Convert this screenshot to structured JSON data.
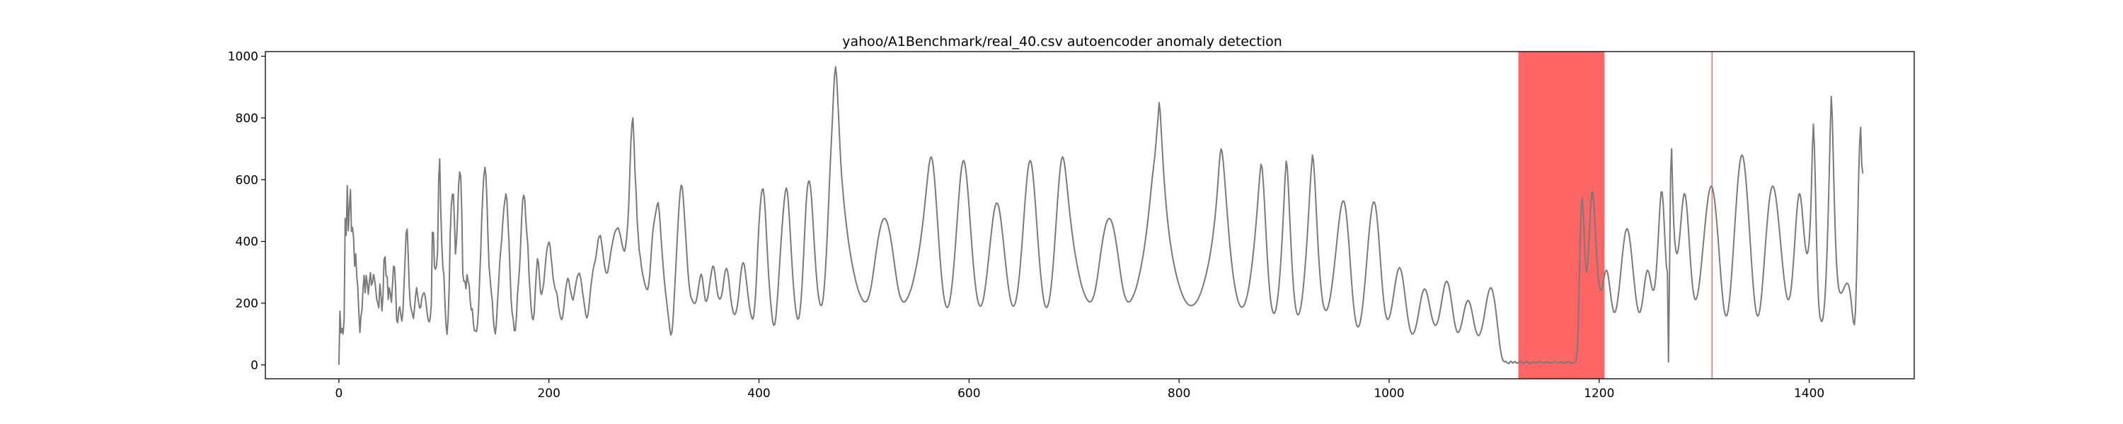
{
  "chart_data": {
    "type": "line",
    "title": "yahoo/A1Benchmark/real_40.csv autoencoder anomaly detection",
    "xlabel": "",
    "ylabel": "",
    "xlim": [
      -70,
      1500
    ],
    "ylim": [
      -45,
      1015
    ],
    "x_ticks": [
      0,
      200,
      400,
      600,
      800,
      1000,
      1200,
      1400
    ],
    "y_ticks": [
      0,
      200,
      400,
      600,
      800,
      1000
    ],
    "grid": false,
    "legend": "none",
    "line_color": "#7a7a7a",
    "anomaly_color": "#ff0000",
    "anomaly_spans": [
      [
        1123,
        1205
      ],
      [
        1307,
        1308
      ]
    ],
    "x_start": 0,
    "x_step": 1,
    "values": [
      0,
      174,
      103,
      118,
      100,
      150,
      474,
      420,
      581,
      435,
      510,
      568,
      432,
      445,
      410,
      320,
      360,
      289,
      251,
      170,
      105,
      158,
      178,
      248,
      290,
      234,
      289,
      265,
      229,
      268,
      299,
      258,
      267,
      293,
      277,
      248,
      212,
      200,
      185,
      262,
      227,
      175,
      224,
      342,
      350,
      288,
      285,
      212,
      250,
      231,
      203,
      258,
      320,
      316,
      251,
      145,
      137,
      177,
      188,
      162,
      142,
      175,
      257,
      339,
      426,
      440,
      358,
      251,
      195,
      178,
      166,
      150,
      183,
      224,
      250,
      224,
      200,
      184,
      188,
      217,
      228,
      234,
      226,
      200,
      169,
      146,
      139,
      151,
      197,
      430,
      428,
      318,
      310,
      321,
      370,
      600,
      667,
      500,
      391,
      318,
      290,
      200,
      131,
      99,
      150,
      248,
      425,
      514,
      552,
      553,
      467,
      359,
      400,
      477,
      582,
      625,
      611,
      497,
      295,
      271,
      271,
      247,
      292,
      271,
      259,
      210,
      178,
      182,
      138,
      111,
      110,
      108,
      131,
      183,
      278,
      361,
      470,
      552,
      611,
      640,
      615,
      528,
      411,
      318,
      280,
      238,
      211,
      150,
      117,
      100,
      137,
      200,
      258,
      323,
      368,
      404,
      460,
      503,
      532,
      554,
      534,
      462,
      394,
      298,
      211,
      168,
      149,
      111,
      111,
      153,
      225,
      267,
      313,
      386,
      473,
      533,
      550,
      536,
      470,
      423,
      383,
      294,
      238,
      187,
      153,
      146,
      168,
      240,
      298,
      344,
      332,
      283,
      236,
      228,
      244,
      263,
      302,
      340,
      372,
      387,
      398,
      389,
      350,
      319,
      280,
      262,
      244,
      238,
      223,
      192,
      171,
      155,
      146,
      154,
      178,
      214,
      247,
      268,
      281,
      273,
      249,
      234,
      216,
      210,
      228,
      249,
      270,
      285,
      294,
      297,
      285,
      264,
      235,
      213,
      189,
      165,
      152,
      160,
      186,
      221,
      257,
      282,
      307,
      324,
      336,
      355,
      382,
      408,
      417,
      419,
      400,
      375,
      345,
      320,
      302,
      297,
      301,
      321,
      343,
      367,
      386,
      403,
      420,
      432,
      438,
      442,
      444,
      432,
      420,
      402,
      385,
      372,
      368,
      384,
      412,
      455,
      520,
      620,
      720,
      780,
      800,
      720,
      620,
      560,
      470,
      420,
      370,
      350,
      320,
      298,
      282,
      266,
      254,
      245,
      244,
      260,
      292,
      342,
      394,
      434,
      460,
      480,
      499,
      518,
      526,
      499,
      453,
      400,
      353,
      309,
      270,
      236,
      208,
      178,
      149,
      118,
      97,
      104,
      138,
      198,
      262,
      329,
      397,
      462,
      520,
      561,
      582,
      576,
      536,
      484,
      430,
      376,
      320,
      276,
      244,
      222,
      213,
      205,
      200,
      199,
      205,
      220,
      242,
      264,
      285,
      294,
      283,
      256,
      229,
      208,
      206,
      216,
      235,
      261,
      285,
      306,
      320,
      318,
      297,
      269,
      243,
      224,
      215,
      213,
      220,
      235,
      260,
      287,
      306,
      313,
      305,
      284,
      253,
      220,
      194,
      177,
      166,
      163,
      169,
      184,
      206,
      236,
      272,
      303,
      325,
      331,
      324,
      301,
      273,
      242,
      213,
      187,
      168,
      154,
      148,
      160,
      192,
      240,
      310,
      389,
      456,
      507,
      546,
      568,
      570,
      544,
      495,
      430,
      363,
      302,
      250,
      207,
      171,
      142,
      128,
      131,
      152,
      190,
      236,
      290,
      345,
      398,
      447,
      491,
      530,
      560,
      573,
      562,
      525,
      472,
      412,
      352,
      296,
      248,
      208,
      179,
      157,
      148,
      152,
      172,
      208,
      258,
      321,
      391,
      464,
      528,
      571,
      593,
      596,
      578,
      541,
      488,
      430,
      372,
      319,
      275,
      240,
      215,
      198,
      192,
      195,
      213,
      246,
      291,
      350,
      420,
      500,
      580,
      660,
      730,
      800,
      880,
      940,
      966,
      930,
      860,
      790,
      715,
      650,
      600,
      560,
      522,
      490,
      460,
      432,
      406,
      382,
      360,
      340,
      322,
      305,
      289,
      274,
      260,
      248,
      238,
      229,
      221,
      214,
      209,
      205,
      204,
      205,
      209,
      216,
      226,
      240,
      258,
      279,
      302,
      327,
      352,
      376,
      398,
      419,
      436,
      451,
      462,
      470,
      474,
      474,
      470,
      462,
      451,
      436,
      419,
      398,
      376,
      352,
      327,
      302,
      279,
      258,
      240,
      226,
      216,
      209,
      205,
      204,
      205,
      209,
      214,
      221,
      229,
      238,
      248,
      260,
      274,
      289,
      305,
      322,
      340,
      360,
      382,
      406,
      432,
      460,
      490,
      522,
      556,
      590,
      622,
      650,
      668,
      674,
      665,
      642,
      608,
      565,
      516,
      465,
      414,
      365,
      320,
      281,
      248,
      222,
      203,
      191,
      186,
      188,
      197,
      213,
      236,
      265,
      300,
      340,
      385,
      433,
      482,
      530,
      574,
      612,
      641,
      658,
      662,
      652,
      630,
      598,
      558,
      514,
      466,
      418,
      372,
      330,
      292,
      260,
      234,
      214,
      200,
      192,
      190,
      194,
      204,
      219,
      240,
      265,
      293,
      324,
      356,
      389,
      421,
      451,
      478,
      500,
      516,
      524,
      524,
      516,
      500,
      478,
      451,
      421,
      389,
      356,
      324,
      293,
      265,
      240,
      219,
      204,
      194,
      190,
      192,
      200,
      214,
      234,
      260,
      292,
      330,
      372,
      418,
      466,
      514,
      558,
      598,
      630,
      652,
      662,
      658,
      641,
      612,
      574,
      530,
      482,
      433,
      385,
      340,
      300,
      265,
      236,
      213,
      197,
      188,
      186,
      191,
      203,
      222,
      248,
      281,
      320,
      365,
      414,
      465,
      516,
      565,
      608,
      642,
      665,
      674,
      668,
      650,
      622,
      590,
      556,
      522,
      490,
      460,
      432,
      406,
      382,
      360,
      340,
      322,
      305,
      289,
      274,
      260,
      248,
      238,
      229,
      221,
      214,
      209,
      205,
      204,
      205,
      209,
      216,
      226,
      240,
      258,
      279,
      302,
      327,
      352,
      376,
      398,
      419,
      436,
      451,
      462,
      470,
      474,
      474,
      470,
      462,
      451,
      436,
      419,
      398,
      376,
      352,
      327,
      302,
      279,
      258,
      240,
      226,
      216,
      209,
      205,
      204,
      205,
      209,
      214,
      221,
      229,
      238,
      248,
      260,
      274,
      289,
      305,
      322,
      340,
      360,
      382,
      406,
      432,
      460,
      490,
      522,
      556,
      590,
      622,
      650,
      680,
      720,
      760,
      800,
      850,
      820,
      760,
      700,
      640,
      590,
      545,
      505,
      470,
      440,
      412,
      388,
      366,
      346,
      328,
      312,
      297,
      283,
      270,
      258,
      247,
      237,
      228,
      220,
      213,
      207,
      202,
      198,
      195,
      193,
      192,
      192,
      193,
      195,
      198,
      202,
      207,
      213,
      220,
      228,
      237,
      247,
      258,
      270,
      283,
      297,
      312,
      328,
      346,
      366,
      388,
      412,
      440,
      470,
      505,
      545,
      590,
      640,
      680,
      700,
      690,
      660,
      620,
      575,
      530,
      485,
      442,
      402,
      366,
      333,
      304,
      279,
      257,
      238,
      222,
      209,
      199,
      192,
      188,
      187,
      189,
      194,
      202,
      213,
      227,
      244,
      264,
      287,
      313,
      342,
      374,
      409,
      447,
      488,
      531,
      577,
      620,
      650,
      640,
      600,
      545,
      480,
      412,
      350,
      295,
      250,
      215,
      190,
      174,
      167,
      168,
      177,
      194,
      219,
      252,
      293,
      342,
      399,
      464,
      537,
      610,
      660,
      640,
      580,
      505,
      430,
      360,
      300,
      250,
      212,
      185,
      169,
      162,
      164,
      173,
      189,
      212,
      241,
      276,
      317,
      363,
      414,
      470,
      530,
      590,
      640,
      680,
      660,
      610,
      545,
      475,
      408,
      348,
      297,
      256,
      224,
      201,
      186,
      178,
      176,
      180,
      189,
      203,
      221,
      243,
      268,
      296,
      326,
      358,
      391,
      424,
      455,
      483,
      506,
      523,
      531,
      530,
      518,
      496,
      464,
      424,
      378,
      329,
      281,
      237,
      199,
      168,
      145,
      130,
      123,
      124,
      132,
      147,
      169,
      197,
      230,
      267,
      307,
      349,
      391,
      431,
      466,
      495,
      516,
      527,
      527,
      515,
      492,
      459,
      418,
      372,
      324,
      278,
      237,
      203,
      177,
      159,
      149,
      147,
      152,
      163,
      179,
      199,
      221,
      244,
      266,
      286,
      302,
      312,
      315,
      310,
      298,
      279,
      255,
      228,
      200,
      173,
      149,
      129,
      114,
      104,
      100,
      101,
      107,
      117,
      131,
      148,
      167,
      187,
      206,
      223,
      236,
      244,
      246,
      242,
      232,
      218,
      201,
      183,
      166,
      151,
      139,
      131,
      128,
      130,
      137,
      149,
      165,
      184,
      205,
      226,
      245,
      260,
      269,
      271,
      266,
      254,
      236,
      214,
      190,
      166,
      144,
      126,
      113,
      106,
      105,
      110,
      120,
      134,
      150,
      167,
      183,
      196,
      205,
      209,
      207,
      199,
      186,
      170,
      152,
      134,
      118,
      106,
      98,
      95,
      97,
      104,
      115,
      130,
      148,
      168,
      189,
      209,
      226,
      240,
      248,
      250,
      245,
      233,
      215,
      192,
      165,
      135,
      104,
      75,
      50,
      30,
      18,
      12,
      10,
      12,
      8,
      6,
      4,
      10,
      12,
      8,
      6,
      9,
      11,
      7,
      5,
      8,
      10,
      12,
      9,
      6,
      5,
      7,
      9,
      11,
      8,
      6,
      5,
      7,
      8,
      10,
      9,
      7,
      6,
      8,
      9,
      11,
      10,
      8,
      7,
      6,
      8,
      9,
      10,
      9,
      7,
      6,
      5,
      7,
      8,
      10,
      11,
      9,
      7,
      6,
      8,
      9,
      10,
      8,
      6,
      5,
      7,
      9,
      10,
      9,
      7,
      6,
      5,
      7,
      8,
      10,
      12,
      40,
      120,
      260,
      420,
      520,
      540,
      480,
      400,
      330,
      300,
      320,
      380,
      450,
      520,
      560,
      560,
      520,
      460,
      395,
      335,
      288,
      257,
      242,
      242,
      253,
      271,
      290,
      303,
      307,
      299,
      280,
      254,
      226,
      201,
      182,
      171,
      170,
      178,
      195,
      219,
      248,
      281,
      316,
      351,
      383,
      410,
      430,
      440,
      440,
      430,
      410,
      383,
      351,
      316,
      281,
      248,
      219,
      195,
      178,
      170,
      171,
      182,
      201,
      226,
      254,
      280,
      299,
      307,
      303,
      290,
      271,
      253,
      242,
      242,
      257,
      288,
      335,
      395,
      460,
      520,
      560,
      560,
      520,
      450,
      380,
      320,
      300,
      10,
      300,
      620,
      700,
      560,
      460,
      400,
      370,
      360,
      368,
      392,
      428,
      470,
      510,
      540,
      555,
      550,
      526,
      487,
      438,
      385,
      334,
      289,
      253,
      228,
      214,
      211,
      217,
      232,
      254,
      282,
      314,
      349,
      386,
      423,
      459,
      493,
      523,
      548,
      566,
      577,
      579,
      572,
      556,
      532,
      500,
      462,
      419,
      373,
      326,
      281,
      240,
      205,
      179,
      163,
      158,
      164,
      181,
      208,
      244,
      287,
      336,
      388,
      442,
      495,
      545,
      590,
      627,
      656,
      674,
      680,
      674,
      656,
      627,
      590,
      545,
      495,
      442,
      388,
      336,
      287,
      244,
      208,
      181,
      164,
      158,
      163,
      179,
      205,
      240,
      281,
      326,
      373,
      419,
      462,
      500,
      532,
      556,
      572,
      579,
      577,
      566,
      548,
      523,
      493,
      459,
      423,
      386,
      349,
      314,
      282,
      254,
      232,
      217,
      211,
      214,
      228,
      253,
      289,
      334,
      385,
      438,
      487,
      526,
      550,
      555,
      540,
      510,
      470,
      428,
      392,
      368,
      360,
      370,
      400,
      460,
      560,
      700,
      780,
      700,
      560,
      400,
      280,
      200,
      160,
      145,
      140,
      150,
      175,
      218,
      282,
      370,
      480,
      610,
      760,
      870,
      800,
      660,
      520,
      410,
      330,
      280,
      250,
      236,
      232,
      234,
      240,
      248,
      256,
      262,
      265,
      262,
      252,
      233,
      205,
      170,
      140,
      130,
      170,
      280,
      430,
      600,
      720,
      770,
      650,
      620
    ]
  }
}
